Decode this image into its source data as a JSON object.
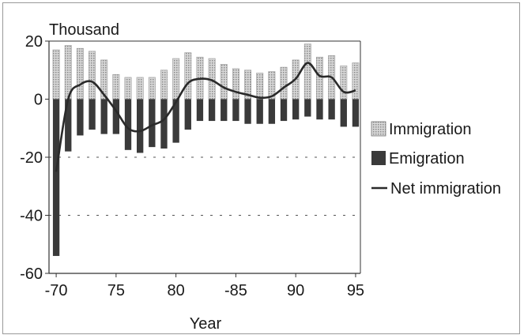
{
  "chart_data": {
    "type": "bar",
    "unit_label": "Thousand",
    "xlabel": "Year",
    "ylim": [
      -60,
      20
    ],
    "yticks": [
      20,
      0,
      -20,
      -40,
      -60
    ],
    "xticks": [
      {
        "year": 1970,
        "label": "-70"
      },
      {
        "year": 1975,
        "label": "75"
      },
      {
        "year": 1980,
        "label": "80"
      },
      {
        "year": 1985,
        "label": "-85"
      },
      {
        "year": 1990,
        "label": "90"
      },
      {
        "year": 1995,
        "label": "95"
      }
    ],
    "gridlines": [
      -20,
      -40
    ],
    "legend_position": "right",
    "x": [
      1970,
      1971,
      1972,
      1973,
      1974,
      1975,
      1976,
      1977,
      1978,
      1979,
      1980,
      1981,
      1982,
      1983,
      1984,
      1985,
      1986,
      1987,
      1988,
      1989,
      1990,
      1991,
      1992,
      1993,
      1994,
      1995
    ],
    "series": [
      {
        "name": "Immigration",
        "kind": "bar",
        "color": "#bdbdbd",
        "values": [
          17,
          18.5,
          17.5,
          16.5,
          13.5,
          8.5,
          7.5,
          7.5,
          7.5,
          10,
          14,
          16,
          14.5,
          14,
          12,
          10.5,
          10,
          9,
          9.5,
          11,
          13.5,
          19,
          14.5,
          15,
          11.5,
          12.5
        ]
      },
      {
        "name": "Emigration",
        "kind": "bar",
        "color": "#3a3a3a",
        "values": [
          -54,
          -18,
          -12.5,
          -10.5,
          -12,
          -12,
          -17.5,
          -18.5,
          -16.5,
          -17,
          -15,
          -10.5,
          -7.5,
          -7.5,
          -7.5,
          -7.5,
          -8.5,
          -8.5,
          -8.5,
          -7.5,
          -7,
          -6,
          -7,
          -7,
          -9.5,
          -9.5
        ]
      },
      {
        "name": "Net immigration",
        "kind": "line",
        "color": "#2a2a2a",
        "values": [
          -25,
          0,
          5,
          6,
          1.5,
          -4,
          -10,
          -11,
          -9,
          -7,
          -1,
          5.5,
          7,
          6.5,
          4,
          2.5,
          1.5,
          0.5,
          1,
          4,
          7,
          12.5,
          8,
          7.5,
          2.5,
          3
        ]
      }
    ]
  }
}
